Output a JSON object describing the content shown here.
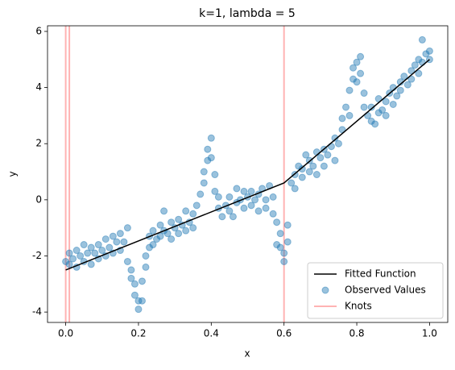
{
  "chart_data": {
    "type": "line",
    "title": "k=1, lambda = 5",
    "xlabel": "x",
    "ylabel": "y",
    "xlim": [
      -0.05,
      1.05
    ],
    "ylim": [
      -4.37,
      6.2
    ],
    "xticks": [
      {
        "value": 0,
        "label": "0.0"
      },
      {
        "value": 0.2,
        "label": "0.2"
      },
      {
        "value": 0.4,
        "label": "0.4"
      },
      {
        "value": 0.6,
        "label": "0.6"
      },
      {
        "value": 0.8,
        "label": "0.8"
      },
      {
        "value": 1,
        "label": "1.0"
      }
    ],
    "yticks": [
      -4,
      -2,
      0,
      2,
      4,
      6
    ],
    "legend": "lower right",
    "series": [
      {
        "name": "Fitted Function",
        "type": "line",
        "color": "#000000",
        "x": [
          0,
          0.6,
          1
        ],
        "values": [
          -2.5,
          0.6,
          5.0
        ]
      },
      {
        "name": "Observed Values",
        "type": "scatter",
        "color": "#1f77b4",
        "x": [
          0.0,
          0.01,
          0.01,
          0.02,
          0.03,
          0.03,
          0.04,
          0.05,
          0.05,
          0.06,
          0.07,
          0.07,
          0.08,
          0.09,
          0.09,
          0.1,
          0.11,
          0.11,
          0.12,
          0.13,
          0.13,
          0.14,
          0.15,
          0.15,
          0.16,
          0.17,
          0.17,
          0.18,
          0.18,
          0.19,
          0.19,
          0.2,
          0.2,
          0.21,
          0.21,
          0.22,
          0.22,
          0.23,
          0.23,
          0.24,
          0.24,
          0.25,
          0.26,
          0.26,
          0.27,
          0.27,
          0.28,
          0.29,
          0.29,
          0.3,
          0.31,
          0.31,
          0.32,
          0.33,
          0.33,
          0.34,
          0.35,
          0.35,
          0.36,
          0.37,
          0.38,
          0.38,
          0.39,
          0.39,
          0.4,
          0.4,
          0.41,
          0.41,
          0.42,
          0.42,
          0.43,
          0.44,
          0.45,
          0.45,
          0.46,
          0.47,
          0.47,
          0.48,
          0.49,
          0.49,
          0.5,
          0.51,
          0.51,
          0.52,
          0.53,
          0.53,
          0.54,
          0.55,
          0.55,
          0.56,
          0.57,
          0.57,
          0.58,
          0.58,
          0.59,
          0.59,
          0.6,
          0.6,
          0.61,
          0.61,
          0.62,
          0.63,
          0.63,
          0.64,
          0.65,
          0.65,
          0.66,
          0.67,
          0.67,
          0.68,
          0.69,
          0.69,
          0.7,
          0.71,
          0.71,
          0.72,
          0.73,
          0.74,
          0.74,
          0.75,
          0.76,
          0.76,
          0.77,
          0.78,
          0.78,
          0.79,
          0.79,
          0.8,
          0.8,
          0.81,
          0.81,
          0.82,
          0.82,
          0.83,
          0.84,
          0.84,
          0.85,
          0.86,
          0.86,
          0.87,
          0.88,
          0.88,
          0.89,
          0.9,
          0.9,
          0.91,
          0.92,
          0.92,
          0.93,
          0.94,
          0.95,
          0.95,
          0.96,
          0.97,
          0.97,
          0.98,
          0.98,
          0.99,
          1.0,
          1.0
        ],
        "values": [
          -2.2,
          -1.9,
          -2.3,
          -2.1,
          -2.4,
          -1.8,
          -2.0,
          -1.6,
          -2.2,
          -1.9,
          -2.3,
          -1.7,
          -1.9,
          -2.1,
          -1.6,
          -1.8,
          -2.0,
          -1.4,
          -1.7,
          -1.9,
          -1.3,
          -1.5,
          -1.8,
          -1.2,
          -1.5,
          -1.0,
          -2.2,
          -2.5,
          -2.8,
          -3.0,
          -3.4,
          -3.6,
          -3.9,
          -3.6,
          -2.9,
          -2.4,
          -2.0,
          -1.7,
          -1.3,
          -1.6,
          -1.1,
          -1.4,
          -0.9,
          -1.3,
          -1.1,
          -0.4,
          -1.2,
          -0.8,
          -1.4,
          -1.0,
          -0.7,
          -1.2,
          -0.9,
          -0.4,
          -1.1,
          -0.8,
          -1.0,
          -0.5,
          -0.2,
          0.2,
          0.6,
          1.0,
          1.4,
          1.8,
          2.2,
          1.5,
          0.9,
          0.3,
          -0.3,
          0.1,
          -0.6,
          -0.2,
          -0.4,
          0.1,
          -0.6,
          0.4,
          -0.1,
          0.0,
          -0.3,
          0.3,
          0.1,
          -0.2,
          0.3,
          0.0,
          0.2,
          -0.4,
          0.4,
          0.0,
          -0.3,
          0.5,
          0.1,
          -0.5,
          -0.8,
          -1.6,
          -1.7,
          -1.2,
          -2.2,
          -1.9,
          -1.5,
          -0.9,
          0.6,
          0.9,
          0.4,
          1.2,
          0.8,
          1.1,
          1.6,
          1.0,
          1.4,
          1.2,
          1.7,
          0.9,
          1.5,
          1.8,
          1.2,
          1.6,
          1.9,
          1.4,
          2.2,
          2.0,
          2.5,
          2.9,
          3.3,
          3.0,
          3.9,
          4.3,
          4.7,
          4.2,
          4.9,
          5.1,
          4.5,
          3.8,
          3.3,
          3.0,
          2.8,
          3.3,
          2.7,
          3.1,
          3.6,
          3.2,
          3.5,
          3.0,
          3.8,
          3.4,
          4.0,
          3.7,
          4.2,
          3.9,
          4.4,
          4.1,
          4.6,
          4.3,
          4.8,
          4.5,
          5.0,
          4.9,
          5.7,
          5.2,
          5.0,
          5.3
        ]
      },
      {
        "name": "Knots",
        "type": "vline",
        "color": "#ffb3b3",
        "x": [
          0,
          0.01,
          0.6
        ]
      }
    ]
  }
}
